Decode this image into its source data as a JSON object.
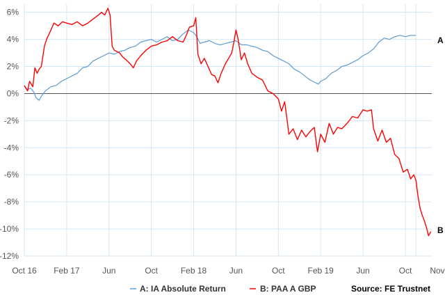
{
  "chart_data": {
    "type": "line",
    "title": "",
    "xlabel": "",
    "ylabel": "",
    "x_ticks": [
      "Oct 16",
      "Feb 17",
      "Jun",
      "Oct",
      "Feb 18",
      "Jun",
      "Oct",
      "Feb 19",
      "Jun",
      "Oct",
      "Nov"
    ],
    "y_ticks": [
      "6%",
      "4%",
      "2%",
      "0%",
      "-2%",
      "-4%",
      "-6%",
      "-8%",
      "-10%",
      "-12%"
    ],
    "ylim": [
      -12,
      6.6
    ],
    "grid": true,
    "zero_line": true,
    "x_month_index_start_oct_2016": [
      0,
      4,
      8,
      12,
      16,
      20,
      24,
      28,
      32,
      36,
      37
    ],
    "series": [
      {
        "name": "A: IA Absolute Return",
        "end_label": "A",
        "color": "#5b9bd5",
        "points": [
          [
            0,
            0.5
          ],
          [
            0.3,
            0.3
          ],
          [
            0.6,
            0.4
          ],
          [
            0.9,
            0.1
          ],
          [
            1.1,
            -0.3
          ],
          [
            1.4,
            -0.5
          ],
          [
            1.6,
            -0.2
          ],
          [
            2.0,
            0.2
          ],
          [
            2.5,
            0.5
          ],
          [
            3.0,
            0.6
          ],
          [
            3.5,
            0.9
          ],
          [
            4.0,
            1.1
          ],
          [
            4.5,
            1.3
          ],
          [
            5.0,
            1.5
          ],
          [
            5.5,
            1.9
          ],
          [
            6.0,
            2.0
          ],
          [
            6.5,
            2.4
          ],
          [
            7.0,
            2.6
          ],
          [
            7.5,
            2.8
          ],
          [
            8.0,
            3.0
          ],
          [
            8.5,
            2.9
          ],
          [
            9.0,
            3.1
          ],
          [
            9.5,
            3.2
          ],
          [
            10.0,
            3.4
          ],
          [
            10.5,
            3.5
          ],
          [
            11.0,
            3.8
          ],
          [
            11.5,
            3.9
          ],
          [
            12.0,
            4.0
          ],
          [
            12.5,
            3.8
          ],
          [
            13.0,
            4.0
          ],
          [
            13.5,
            4.2
          ],
          [
            14.0,
            3.9
          ],
          [
            14.5,
            4.0
          ],
          [
            15.0,
            4.4
          ],
          [
            15.5,
            4.7
          ],
          [
            16.0,
            4.5
          ],
          [
            16.3,
            4.2
          ],
          [
            16.6,
            3.7
          ],
          [
            17.0,
            3.8
          ],
          [
            17.5,
            3.9
          ],
          [
            18.0,
            3.7
          ],
          [
            18.5,
            3.6
          ],
          [
            19.0,
            3.7
          ],
          [
            19.5,
            3.8
          ],
          [
            20.0,
            3.9
          ],
          [
            20.5,
            3.6
          ],
          [
            21.0,
            3.6
          ],
          [
            21.5,
            3.5
          ],
          [
            22.0,
            3.4
          ],
          [
            22.5,
            3.2
          ],
          [
            23.0,
            3.1
          ],
          [
            23.5,
            2.8
          ],
          [
            24.0,
            2.6
          ],
          [
            24.5,
            2.4
          ],
          [
            25.0,
            2.2
          ],
          [
            25.5,
            1.8
          ],
          [
            26.0,
            1.6
          ],
          [
            26.5,
            1.3
          ],
          [
            27.0,
            1.0
          ],
          [
            27.5,
            0.8
          ],
          [
            27.8,
            0.7
          ],
          [
            28.0,
            0.9
          ],
          [
            28.5,
            1.1
          ],
          [
            29.0,
            1.5
          ],
          [
            29.5,
            1.7
          ],
          [
            30.0,
            2.0
          ],
          [
            30.5,
            2.1
          ],
          [
            31.0,
            2.3
          ],
          [
            31.5,
            2.5
          ],
          [
            32.0,
            2.8
          ],
          [
            32.5,
            3.0
          ],
          [
            33.0,
            3.3
          ],
          [
            33.5,
            3.8
          ],
          [
            34.0,
            4.1
          ],
          [
            34.5,
            4.0
          ],
          [
            35.0,
            4.2
          ],
          [
            35.5,
            4.3
          ],
          [
            36.0,
            4.2
          ],
          [
            36.5,
            4.3
          ],
          [
            37.0,
            4.3
          ]
        ]
      },
      {
        "name": "B: PAA A GBP",
        "end_label": "B",
        "color": "#ff0000",
        "points": [
          [
            0,
            0.6
          ],
          [
            0.3,
            0.2
          ],
          [
            0.5,
            0.9
          ],
          [
            0.8,
            0.5
          ],
          [
            1.0,
            1.9
          ],
          [
            1.2,
            1.5
          ],
          [
            1.4,
            1.8
          ],
          [
            1.6,
            2.0
          ],
          [
            1.9,
            3.5
          ],
          [
            2.1,
            4.0
          ],
          [
            2.4,
            4.5
          ],
          [
            2.8,
            5.2
          ],
          [
            3.2,
            5.0
          ],
          [
            3.6,
            5.3
          ],
          [
            4.0,
            5.2
          ],
          [
            4.5,
            5.1
          ],
          [
            5.0,
            5.3
          ],
          [
            5.5,
            5.0
          ],
          [
            6.0,
            5.2
          ],
          [
            6.5,
            5.5
          ],
          [
            7.0,
            5.8
          ],
          [
            7.3,
            6.0
          ],
          [
            7.6,
            5.8
          ],
          [
            7.9,
            6.3
          ],
          [
            8.1,
            5.8
          ],
          [
            8.3,
            3.5
          ],
          [
            8.5,
            3.2
          ],
          [
            9.0,
            3.0
          ],
          [
            9.3,
            2.7
          ],
          [
            9.6,
            2.5
          ],
          [
            10.0,
            2.2
          ],
          [
            10.3,
            1.9
          ],
          [
            10.6,
            2.4
          ],
          [
            11.0,
            2.8
          ],
          [
            11.5,
            3.2
          ],
          [
            12.0,
            3.5
          ],
          [
            12.5,
            3.6
          ],
          [
            13.0,
            3.8
          ],
          [
            13.5,
            3.9
          ],
          [
            14.0,
            4.2
          ],
          [
            14.5,
            3.9
          ],
          [
            15.0,
            3.8
          ],
          [
            15.3,
            4.3
          ],
          [
            15.6,
            4.9
          ],
          [
            16.0,
            5.0
          ],
          [
            16.2,
            5.6
          ],
          [
            16.4,
            2.9
          ],
          [
            16.7,
            2.2
          ],
          [
            17.0,
            2.6
          ],
          [
            17.3,
            2.1
          ],
          [
            17.7,
            1.4
          ],
          [
            18.0,
            1.3
          ],
          [
            18.3,
            0.8
          ],
          [
            18.6,
            1.5
          ],
          [
            19.0,
            2.2
          ],
          [
            19.3,
            2.6
          ],
          [
            19.6,
            3.0
          ],
          [
            19.8,
            3.8
          ],
          [
            20.0,
            4.7
          ],
          [
            20.2,
            4.0
          ],
          [
            20.5,
            2.5
          ],
          [
            20.8,
            3.0
          ],
          [
            21.1,
            2.2
          ],
          [
            21.5,
            1.5
          ],
          [
            22.0,
            1.2
          ],
          [
            22.5,
            1.0
          ],
          [
            23.0,
            0.2
          ],
          [
            23.5,
            0.0
          ],
          [
            24.0,
            -0.4
          ],
          [
            24.3,
            -1.3
          ],
          [
            24.6,
            -0.6
          ],
          [
            24.8,
            -1.8
          ],
          [
            25.0,
            -3.0
          ],
          [
            25.4,
            -2.6
          ],
          [
            25.8,
            -3.4
          ],
          [
            26.2,
            -2.7
          ],
          [
            26.6,
            -3.2
          ],
          [
            27.0,
            -2.8
          ],
          [
            27.4,
            -2.5
          ],
          [
            27.7,
            -4.3
          ],
          [
            28.0,
            -3.0
          ],
          [
            28.4,
            -3.6
          ],
          [
            28.8,
            -2.2
          ],
          [
            29.2,
            -3.0
          ],
          [
            29.6,
            -2.5
          ],
          [
            30.0,
            -2.6
          ],
          [
            30.5,
            -2.2
          ],
          [
            31.0,
            -1.7
          ],
          [
            31.5,
            -1.8
          ],
          [
            32.0,
            -1.2
          ],
          [
            32.4,
            -1.3
          ],
          [
            32.8,
            -1.2
          ],
          [
            33.0,
            -2.6
          ],
          [
            33.4,
            -3.5
          ],
          [
            33.8,
            -2.7
          ],
          [
            34.2,
            -3.6
          ],
          [
            34.6,
            -3.3
          ],
          [
            35.0,
            -4.5
          ],
          [
            35.4,
            -4.8
          ],
          [
            35.8,
            -5.8
          ],
          [
            36.2,
            -5.6
          ],
          [
            36.5,
            -6.3
          ],
          [
            36.8,
            -6.0
          ],
          [
            37.0,
            -6.4
          ],
          [
            37.2,
            -7.6
          ],
          [
            37.4,
            -8.5
          ],
          [
            37.6,
            -9.0
          ],
          [
            37.8,
            -9.4
          ],
          [
            38.0,
            -9.9
          ],
          [
            38.2,
            -10.5
          ],
          [
            38.4,
            -10.2
          ]
        ]
      }
    ],
    "source": "Source: FE Trustnet"
  }
}
